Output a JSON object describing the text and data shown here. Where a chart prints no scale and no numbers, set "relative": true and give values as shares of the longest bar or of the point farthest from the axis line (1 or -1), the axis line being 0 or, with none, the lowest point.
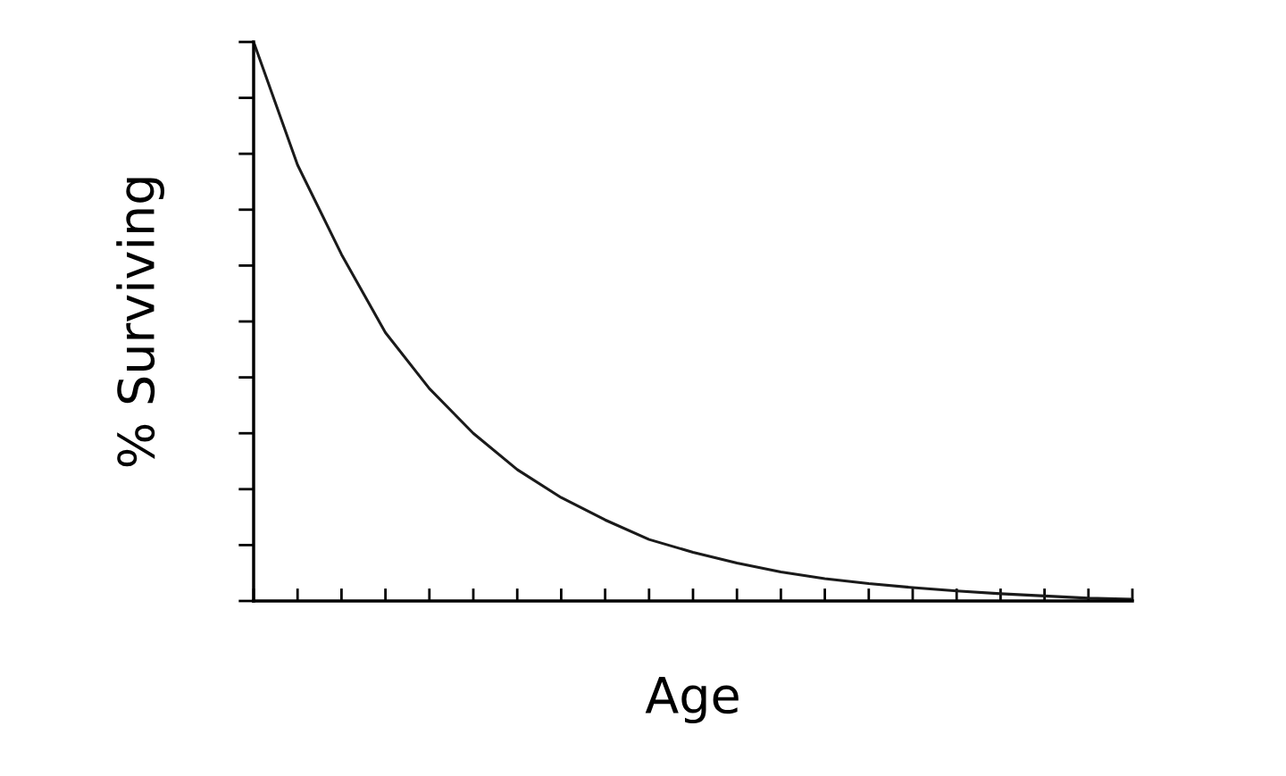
{
  "chart_data": {
    "type": "line",
    "relative": true,
    "xlabel": "Age",
    "ylabel": "% Surviving",
    "categories": [
      null,
      null,
      null,
      null,
      null,
      null,
      null,
      null,
      null,
      null,
      null,
      null,
      null,
      null,
      null,
      null,
      null,
      null,
      null,
      null,
      null
    ],
    "series": [
      {
        "color": "#1a1a1a",
        "values": [
          1.0,
          0.78,
          0.62,
          0.48,
          0.38,
          0.3,
          0.235,
          0.185,
          0.145,
          0.11,
          0.087,
          0.068,
          0.052,
          0.04,
          0.031,
          0.024,
          0.018,
          0.013,
          0.009,
          0.005,
          0.003
        ]
      }
    ],
    "tick_labels": false,
    "grid": false,
    "marker": "none",
    "line_style": "solid"
  }
}
